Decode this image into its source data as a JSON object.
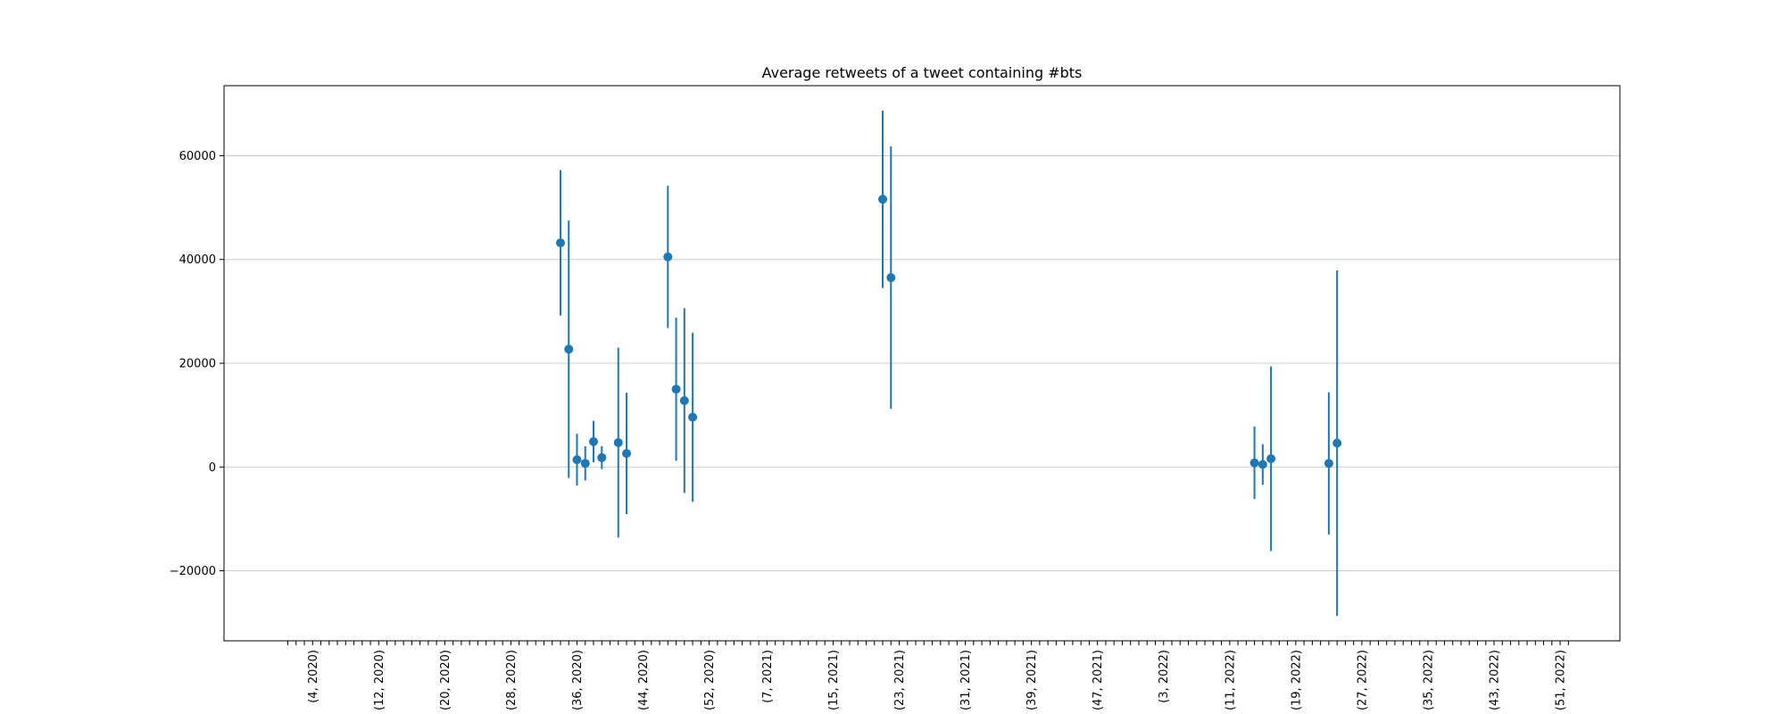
{
  "chart_data": {
    "type": "scatter",
    "title": "Average retweets of a tweet containing #bts",
    "xlabel": "",
    "ylabel": "",
    "x_axis": {
      "kind": "year-week",
      "start": [
        1,
        2020
      ],
      "end": [
        52,
        2022
      ],
      "labeled_ticks": [
        "(4, 2020)",
        "(12, 2020)",
        "(20, 2020)",
        "(28, 2020)",
        "(36, 2020)",
        "(44, 2020)",
        "(52, 2020)",
        "(7, 2021)",
        "(15, 2021)",
        "(23, 2021)",
        "(31, 2021)",
        "(39, 2021)",
        "(47, 2021)",
        "(3, 2022)",
        "(11, 2022)",
        "(19, 2022)",
        "(27, 2022)",
        "(35, 2022)",
        "(43, 2022)",
        "(51, 2022)"
      ],
      "tick_every": 1
    },
    "y_axis": {
      "ticks": [
        -20000,
        0,
        20000,
        40000,
        60000
      ],
      "tick_labels": [
        "−20000",
        "0",
        "20000",
        "40000",
        "60000"
      ],
      "ylim": [
        -33500,
        73500
      ]
    },
    "grid": "y",
    "series": [
      {
        "color": "#1f77b4",
        "points": [
          {
            "x": "(34, 2020)",
            "y": 43200,
            "err": 14000
          },
          {
            "x": "(35, 2020)",
            "y": 22700,
            "err": 24800
          },
          {
            "x": "(36, 2020)",
            "y": 1400,
            "err": 5000
          },
          {
            "x": "(37, 2020)",
            "y": 700,
            "err": 3300
          },
          {
            "x": "(38, 2020)",
            "y": 4900,
            "err": 4000
          },
          {
            "x": "(39, 2020)",
            "y": 1800,
            "err": 2200
          },
          {
            "x": "(41, 2020)",
            "y": 4700,
            "err": 18300
          },
          {
            "x": "(42, 2020)",
            "y": 2600,
            "err": 11700
          },
          {
            "x": "(47, 2020)",
            "y": 40500,
            "err": 13700
          },
          {
            "x": "(48, 2020)",
            "y": 15000,
            "err": 13800
          },
          {
            "x": "(49, 2020)",
            "y": 12800,
            "err": 17800
          },
          {
            "x": "(50, 2020)",
            "y": 9600,
            "err": 16300
          },
          {
            "x": "(21, 2021)",
            "y": 51600,
            "err": 17100
          },
          {
            "x": "(22, 2021)",
            "y": 36500,
            "err": 25300
          },
          {
            "x": "(14, 2022)",
            "y": 800,
            "err": 7000
          },
          {
            "x": "(15, 2022)",
            "y": 500,
            "err": 3900
          },
          {
            "x": "(16, 2022)",
            "y": 1600,
            "err": 17800
          },
          {
            "x": "(23, 2022)",
            "y": 700,
            "err": 13700
          },
          {
            "x": "(24, 2022)",
            "y": 4600,
            "err": 33300
          }
        ]
      }
    ]
  }
}
